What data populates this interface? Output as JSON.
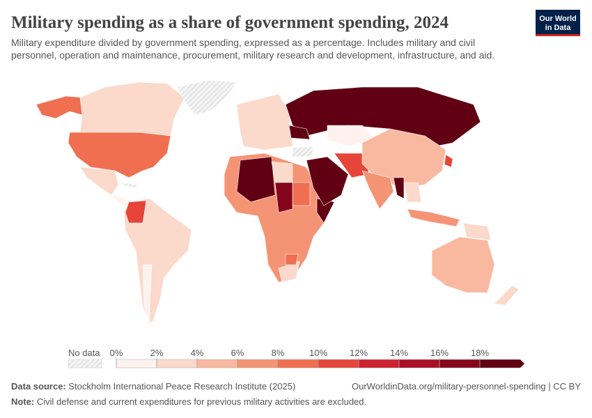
{
  "header": {
    "title": "Military spending as a share of government spending, 2024",
    "subtitle": [
      "Military expenditure divided by government spending, expressed as a percentage. Includes military and civil",
      "personnel, operation and maintenance, procurement, military research and development, infrastructure, and aid."
    ],
    "logo": [
      "Our World",
      "in Data"
    ]
  },
  "legend": {
    "no_data": "No data",
    "ticks": [
      {
        "value": 0,
        "label": "0%"
      },
      {
        "value": 2,
        "label": "2%"
      },
      {
        "value": 4,
        "label": "4%"
      },
      {
        "value": 6,
        "label": "6%"
      },
      {
        "value": 8,
        "label": "8%"
      },
      {
        "value": 10,
        "label": "10%"
      },
      {
        "value": 12,
        "label": "12%"
      },
      {
        "value": 14,
        "label": "14%"
      },
      {
        "value": 16,
        "label": "16%"
      },
      {
        "value": 18,
        "label": "18%"
      }
    ],
    "colors": [
      "#fdf2ee",
      "#fbd9cb",
      "#f9b9a0",
      "#f59475",
      "#f06f51",
      "#e6453a",
      "#cc2230",
      "#aa1025",
      "#85061c",
      "#610013"
    ]
  },
  "footer": {
    "source_label": "Data source:",
    "source": "Stockholm International Peace Research Institute (2025)",
    "url": "OurWorldinData.org/military-personnel-spending | CC BY",
    "note_label": "Note:",
    "note": "Civil defense and current expenditures for previous military activities are excluded."
  }
}
